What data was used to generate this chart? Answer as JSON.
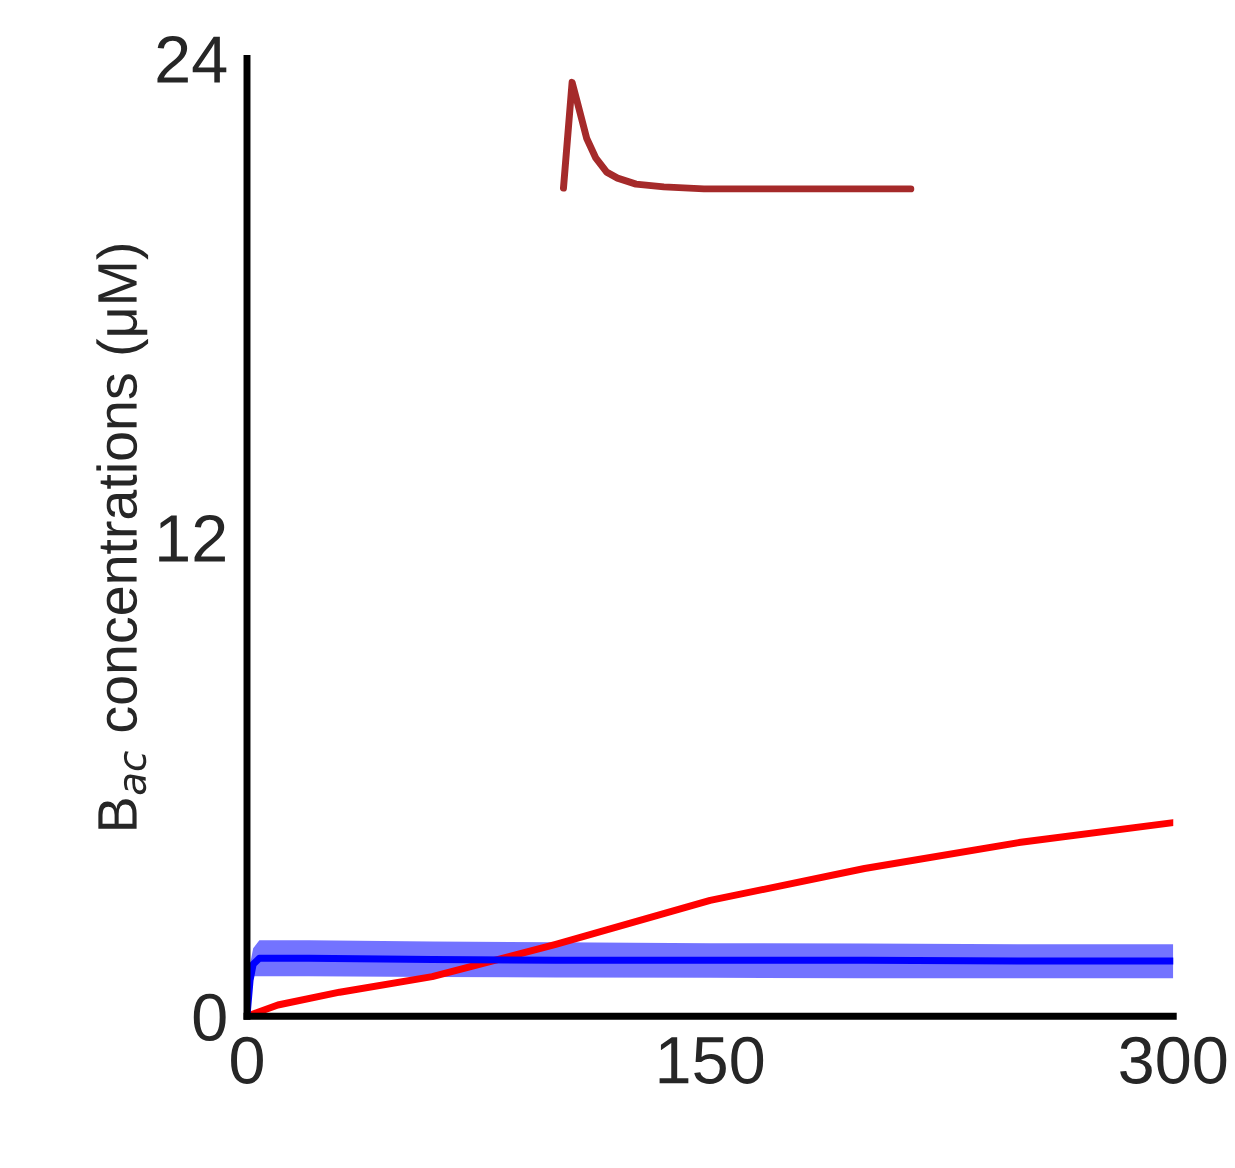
{
  "chart_data": {
    "type": "line",
    "ylabel": "B$_{ac}$ concentrations (μM)",
    "xlim": [
      0,
      300
    ],
    "ylim": [
      0,
      24
    ],
    "xticks": [
      0,
      150,
      300
    ],
    "yticks": [
      0,
      12,
      24
    ],
    "grid": false,
    "marker": "none",
    "line_style": "solid",
    "series": [
      {
        "color": "#a52a2a",
        "x": [
          102.5,
          105.3,
          107,
          110,
          113,
          116.5,
          120,
          126,
          135,
          148,
          170,
          215
        ],
        "values": [
          20.75,
          23.4,
          22.9,
          22.0,
          21.5,
          21.15,
          21.0,
          20.85,
          20.78,
          20.73,
          20.73,
          20.73
        ]
      },
      {
        "color": "#ff0000",
        "x": [
          0,
          10,
          30,
          60,
          100,
          150,
          200,
          250,
          300
        ],
        "values": [
          0,
          0.28,
          0.6,
          0.99,
          1.8,
          2.9,
          3.7,
          4.35,
          4.85
        ]
      },
      {
        "color": "#0000ff",
        "x": [
          0,
          1,
          2,
          4,
          8,
          20,
          60,
          100,
          150,
          200,
          250,
          300
        ],
        "values": [
          0,
          0.9,
          1.3,
          1.45,
          1.45,
          1.45,
          1.42,
          1.4,
          1.4,
          1.4,
          1.38,
          1.38
        ],
        "lower": [
          0,
          0.5,
          1.0,
          1.0,
          1.0,
          1.0,
          0.98,
          0.97,
          0.96,
          0.95,
          0.95,
          0.95
        ],
        "upper": [
          0,
          1.3,
          1.7,
          1.9,
          1.9,
          1.9,
          1.87,
          1.85,
          1.83,
          1.82,
          1.8,
          1.8
        ]
      }
    ]
  }
}
